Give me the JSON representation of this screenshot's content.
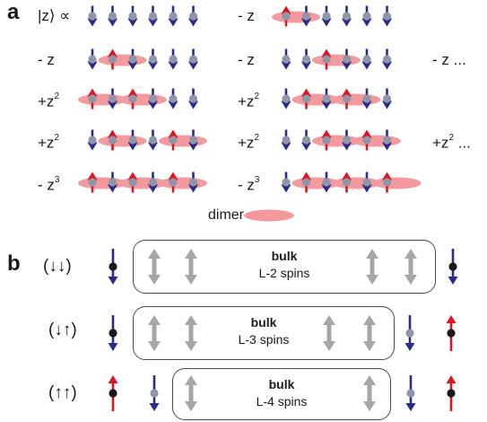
{
  "panel_a": {
    "letter": "a",
    "state_label": "|z⟩ ∝",
    "rows": [
      {
        "terms": [
          {
            "prefix": "",
            "pattern": "DDDDDD"
          },
          {
            "prefix": "- z",
            "pattern": "UDDDDD",
            "dimers": [
              0
            ]
          }
        ]
      },
      {
        "terms": [
          {
            "prefix": "- z",
            "pattern": "DUDDDD",
            "dimers": [
              1
            ]
          },
          {
            "prefix": "- z",
            "pattern": "DDUDDD",
            "dimers": [
              2
            ]
          }
        ],
        "suffix": "- z ..."
      },
      {
        "terms": [
          {
            "prefix": "+z²",
            "pattern": "UDUDDD",
            "dimers": [
              0,
              2
            ]
          },
          {
            "prefix": "+z²",
            "pattern": "DUDUDD",
            "dimers": [
              1,
              3
            ]
          }
        ]
      },
      {
        "terms": [
          {
            "prefix": "+z²",
            "pattern": "DUDDUD",
            "dimers": [
              1,
              4
            ]
          },
          {
            "prefix": "+z²",
            "pattern": "DDUDUD",
            "dimers": [
              2,
              4
            ]
          }
        ],
        "suffix": "+z² ..."
      },
      {
        "terms": [
          {
            "prefix": "- z³",
            "pattern": "UDUDUD",
            "dimers": [
              0,
              2,
              4
            ]
          },
          {
            "prefix": "- z³",
            "pattern": "DUDUDU",
            "dimers": [
              1,
              3,
              5
            ]
          }
        ]
      }
    ],
    "legend_label": "dimer"
  },
  "panel_b": {
    "letter": "b",
    "cases": [
      {
        "bc": "(↓↓)",
        "bulk_title": "bulk",
        "bulk_sub": "L-2 spins"
      },
      {
        "bc": "(↓↑)",
        "bulk_title": "bulk",
        "bulk_sub": "L-3 spins"
      },
      {
        "bc": "(↑↑)",
        "bulk_title": "bulk",
        "bulk_sub": "L-4 spins"
      }
    ]
  },
  "colors": {
    "down_arrow": "#2b2a8c",
    "up_arrow": "#e0141e",
    "dimer": "#f4999e",
    "site_dot": "#8f96a8",
    "edge_site": "#1a1a1a",
    "bulk_arrow": "#a6a6a6"
  }
}
